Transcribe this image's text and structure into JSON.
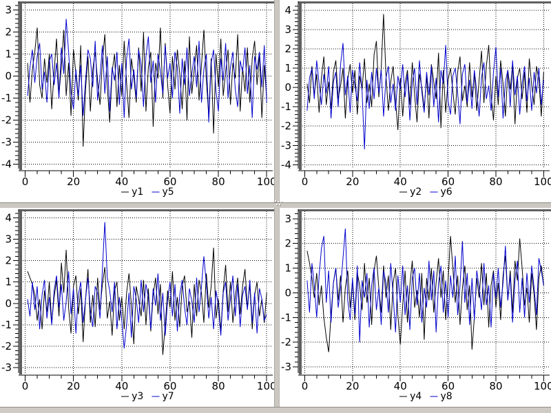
{
  "window": {
    "background": "#cbc7c1",
    "plot_frame_color": "#5f5f5f",
    "axis_color": "#000000",
    "grid_color": "#000000",
    "series_black": "#000000",
    "series_blue": "#0000cc"
  },
  "chart_data": [
    {
      "type": "line",
      "title": "",
      "xlabel": "",
      "ylabel": "",
      "grid": true,
      "legend_position": "bottom",
      "x_ticks": [
        0,
        20,
        40,
        60,
        80,
        100
      ],
      "x_tick_labels": [
        "0",
        "20",
        "40",
        "60",
        "80",
        "100"
      ],
      "y_ticks": [
        3,
        2,
        1,
        0,
        -1,
        -2,
        -3,
        -4
      ],
      "y_tick_labels": [
        "3",
        "2",
        "1",
        "0",
        "-1",
        "-2",
        "-3",
        "-4"
      ],
      "x_minor_step": 5,
      "y_minor_step": 0.2,
      "xlim": [
        -1,
        102.5
      ],
      "ylim": [
        -4.2,
        3.3
      ],
      "x_start": 1,
      "x_step": 1,
      "series": [
        {
          "name": "y1",
          "color": "#000000",
          "values": [
            0.6,
            -1.2,
            0.3,
            1.1,
            2.2,
            -0.4,
            -1.0,
            0.8,
            -0.3,
            1.0,
            -1.5,
            0.2,
            1.7,
            -0.8,
            0.4,
            2.1,
            -0.9,
            0.6,
            -1.8,
            1.2,
            0.1,
            -1.1,
            1.4,
            -3.2,
            -0.6,
            0.9,
            -1.6,
            0.3,
            1.1,
            -0.2,
            -1.3,
            0.7,
            1.9,
            -0.5,
            -2.1,
            0.2,
            1.0,
            -1.4,
            0.5,
            -0.9,
            1.6,
            -0.3,
            -1.9,
            0.8,
            0.0,
            -1.2,
            1.3,
            -0.7,
            2.0,
            -1.6,
            0.4,
            1.1,
            -2.3,
            0.6,
            -0.1,
            2.2,
            -1.0,
            1.5,
            -0.4,
            -1.7,
            0.9,
            -0.6,
            1.2,
            0.1,
            -1.5,
            0.7,
            -2.0,
            1.8,
            -0.8,
            0.3,
            1.4,
            -1.1,
            0.5,
            2.1,
            -0.2,
            -1.8,
            0.8,
            -2.6,
            1.0,
            -0.5,
            1.7,
            -0.9,
            0.2,
            1.2,
            -1.3,
            0.6,
            -0.1,
            1.9,
            -1.6,
            0.4,
            -0.7,
            1.3,
            -1.2,
            0.8,
            1.6,
            -0.4,
            1.0,
            -1.9,
            0.5,
            -1.0
          ]
        },
        {
          "name": "y5",
          "color": "#0000cc",
          "values": [
            -0.9,
            0.4,
            1.2,
            -0.3,
            0.9,
            1.5,
            -0.6,
            0.2,
            -1.2,
            0.7,
            1.0,
            -0.4,
            0.6,
            -1.0,
            1.3,
            0.1,
            2.6,
            1.1,
            -0.7,
            -1.5,
            0.3,
            -0.9,
            0.5,
            -1.8,
            -0.2,
            1.2,
            0.8,
            -0.5,
            1.6,
            -1.1,
            0.0,
            1.4,
            -0.8,
            0.9,
            -1.6,
            0.4,
            -0.2,
            1.1,
            -1.3,
            0.6,
            -1.9,
            0.8,
            1.7,
            -0.6,
            0.3,
            -1.0,
            1.2,
            0.5,
            -1.4,
            0.9,
            1.8,
            -0.3,
            0.7,
            -1.2,
            1.0,
            0.2,
            -0.8,
            1.4,
            -0.1,
            0.6,
            -1.0,
            1.1,
            0.4,
            -1.7,
            0.8,
            -0.4,
            1.3,
            -0.9,
            0.1,
            0.9,
            -0.5,
            1.6,
            -1.2,
            0.3,
            1.0,
            -2.1,
            0.6,
            1.2,
            -0.7,
            -1.6,
            0.8,
            -0.2,
            1.5,
            -1.0,
            0.4,
            1.1,
            -0.6,
            -1.4,
            0.7,
            0.2,
            1.3,
            -0.8,
            0.5,
            -1.9,
            0.9,
            0.3,
            1.1,
            -0.5,
            1.4,
            -1.2
          ]
        }
      ]
    },
    {
      "type": "line",
      "title": "",
      "xlabel": "",
      "ylabel": "",
      "grid": true,
      "legend_position": "bottom",
      "x_ticks": [
        0,
        20,
        40,
        60,
        80,
        100
      ],
      "x_tick_labels": [
        "0",
        "20",
        "40",
        "60",
        "80",
        "100"
      ],
      "y_ticks": [
        4,
        3,
        2,
        1,
        0,
        -1,
        -2,
        -3,
        -4
      ],
      "y_tick_labels": [
        "4",
        "3",
        "2",
        "1",
        "0",
        "-1",
        "-2",
        "-3",
        "-4"
      ],
      "x_minor_step": 5,
      "y_minor_step": 0.2,
      "xlim": [
        -1,
        102.5
      ],
      "ylim": [
        -4.2,
        4.35
      ],
      "x_start": 1,
      "x_step": 1,
      "series": [
        {
          "name": "y2",
          "color": "#000000",
          "values": [
            0.2,
            -0.8,
            1.1,
            -0.4,
            0.7,
            -1.3,
            0.5,
            1.6,
            -0.9,
            0.3,
            -1.1,
            0.8,
            1.4,
            -0.6,
            0.1,
            1.0,
            -1.6,
            0.4,
            1.2,
            -0.3,
            0.9,
            -1.4,
            0.6,
            -0.1,
            1.5,
            -0.8,
            0.2,
            -1.0,
            1.7,
            2.4,
            -0.5,
            1.0,
            3.8,
            0.6,
            -1.2,
            0.3,
            1.1,
            -0.7,
            -2.2,
            0.5,
            -1.5,
            0.2,
            0.9,
            -0.9,
            1.3,
            -0.4,
            -1.8,
            0.7,
            0.0,
            -1.1,
            0.6,
            -1.6,
            1.2,
            0.3,
            -0.6,
            1.8,
            -2.1,
            0.9,
            -1.3,
            0.4,
            1.0,
            -0.2,
            -1.4,
            0.8,
            1.6,
            -0.7,
            0.1,
            -1.0,
            1.3,
            -0.5,
            0.7,
            -1.2,
            0.4,
            1.9,
            -0.8,
            1.1,
            2.2,
            -0.4,
            -1.7,
            0.6,
            -0.9,
            1.4,
            0.2,
            -1.5,
            0.9,
            -0.1,
            1.2,
            -1.9,
            0.5,
            1.0,
            -0.6,
            0.8,
            -1.3,
            1.5,
            0.1,
            -0.9,
            1.1,
            0.4,
            -1.5,
            0.8
          ]
        },
        {
          "name": "y6",
          "color": "#0000cc",
          "values": [
            -1.2,
            0.5,
            1.0,
            -0.6,
            1.4,
            0.2,
            -0.9,
            0.7,
            -0.3,
            1.1,
            -1.6,
            0.3,
            0.8,
            -1.0,
            1.2,
            2.3,
            -0.4,
            0.6,
            -1.3,
            0.9,
            0.1,
            -0.7,
            1.3,
            -0.2,
            -3.2,
            0.4,
            -1.1,
            0.8,
            -0.6,
            1.0,
            -0.3,
            0.9,
            -1.5,
            0.5,
            1.1,
            -0.8,
            0.2,
            -1.2,
            0.6,
            -0.1,
            1.2,
            -0.5,
            0.7,
            -1.7,
            0.3,
            1.0,
            -0.9,
            1.4,
            -0.2,
            -1.3,
            0.8,
            -0.4,
            1.1,
            -1.0,
            0.5,
            -1.8,
            0.9,
            0.2,
            2.2,
            -0.7,
            -1.4,
            0.6,
            1.0,
            -0.3,
            -1.9,
            0.7,
            1.2,
            -0.8,
            0.4,
            -1.1,
            0.9,
            -0.2,
            -1.5,
            0.5,
            1.3,
            -0.6,
            0.1,
            -1.2,
            0.8,
            2.1,
            -0.5,
            1.0,
            -1.6,
            0.3,
            0.9,
            -1.0,
            1.4,
            -0.4,
            0.6,
            -1.4,
            0.2,
            1.1,
            -0.7,
            0.5,
            -1.2,
            0.8,
            -0.3,
            1.0,
            -0.9,
            0.4
          ]
        }
      ]
    },
    {
      "type": "line",
      "title": "",
      "xlabel": "",
      "ylabel": "",
      "grid": true,
      "legend_position": "bottom",
      "x_ticks": [
        0,
        20,
        40,
        60,
        80,
        100
      ],
      "x_tick_labels": [
        "0",
        "20",
        "40",
        "60",
        "80",
        "100"
      ],
      "y_ticks": [
        4,
        3,
        2,
        1,
        0,
        -1,
        -2,
        -3
      ],
      "y_tick_labels": [
        "4",
        "3",
        "2",
        "1",
        "0",
        "-1",
        "-2",
        "-3"
      ],
      "x_minor_step": 5,
      "y_minor_step": 0.2,
      "xlim": [
        -1,
        102.5
      ],
      "ylim": [
        -3.25,
        4.3
      ],
      "x_start": 1,
      "x_step": 1,
      "series": [
        {
          "name": "y3",
          "color": "#000000",
          "values": [
            1.5,
            1.2,
            0.9,
            0.4,
            -0.8,
            0.2,
            -1.2,
            0.6,
            -0.4,
            1.0,
            -0.9,
            0.3,
            1.1,
            -0.6,
            1.9,
            0.5,
            2.5,
            -0.2,
            -1.4,
            0.8,
            1.3,
            -0.5,
            0.7,
            -1.8,
            0.2,
            1.6,
            -0.9,
            0.4,
            -1.1,
            1.2,
            -0.3,
            0.9,
            1.7,
            -0.7,
            0.1,
            -1.5,
            0.6,
            1.0,
            -0.8,
            0.3,
            -1.2,
            0.5,
            1.4,
            -0.1,
            -1.9,
            0.8,
            0.2,
            -0.6,
            1.1,
            -1.0,
            0.7,
            -1.3,
            0.4,
            1.2,
            -0.5,
            0.9,
            -2.4,
            -1.0,
            0.6,
            -0.2,
            1.5,
            -0.8,
            0.3,
            -1.1,
            0.8,
            1.3,
            -0.4,
            0.1,
            -1.6,
            0.9,
            -0.6,
            1.1,
            0.5,
            -0.9,
            1.4,
            -0.2,
            0.8,
            2.6,
            -0.7,
            0.2,
            -1.3,
            0.6,
            1.8,
            -0.4,
            1.0,
            -0.9,
            0.3,
            1.2,
            -0.5,
            0.8,
            1.6,
            -0.2,
            0.9,
            -1.2,
            0.4,
            1.0,
            -0.6,
            0.2,
            -0.9,
            0.5
          ]
        },
        {
          "name": "y7",
          "color": "#0000cc",
          "values": [
            0.2,
            -0.6,
            1.0,
            -0.3,
            0.8,
            -1.2,
            0.4,
            1.1,
            -0.7,
            0.3,
            -1.0,
            0.6,
            1.3,
            -0.2,
            0.9,
            -0.8,
            0.1,
            1.5,
            -0.5,
            0.7,
            -1.4,
            0.4,
            1.0,
            -0.9,
            0.2,
            1.2,
            -0.3,
            -1.1,
            0.8,
            0.5,
            -0.7,
            1.6,
            3.8,
            1.2,
            0.6,
            -0.4,
            1.0,
            -1.2,
            0.3,
            -0.8,
            -2.1,
            -1.0,
            0.5,
            -1.6,
            0.8,
            0.2,
            -0.9,
            1.1,
            -0.4,
            0.9,
            0.3,
            -1.2,
            0.7,
            -0.1,
            1.4,
            -0.8,
            0.5,
            -1.5,
            0.2,
            1.0,
            -0.6,
            0.9,
            -1.3,
            0.4,
            1.1,
            -0.2,
            -1.0,
            0.7,
            0.1,
            -0.9,
            1.2,
            -0.4,
            0.8,
            2.2,
            0.9,
            -0.7,
            0.3,
            -1.2,
            0.6,
            -0.1,
            -1.5,
            0.5,
            1.0,
            -0.8,
            0.2,
            1.3,
            -0.6,
            0.9,
            -1.1,
            0.4,
            0.8,
            -0.3,
            1.1,
            -0.9,
            0.5,
            -1.4,
            0.7,
            0.2,
            -0.8,
            -0.5
          ]
        }
      ]
    },
    {
      "type": "line",
      "title": "",
      "xlabel": "",
      "ylabel": "",
      "grid": true,
      "legend_position": "bottom",
      "x_ticks": [
        0,
        20,
        40,
        60,
        80,
        100
      ],
      "x_tick_labels": [
        "0",
        "20",
        "40",
        "60",
        "80",
        "100"
      ],
      "y_ticks": [
        3,
        2,
        1,
        0,
        -1,
        -2,
        -3
      ],
      "y_tick_labels": [
        "3",
        "2",
        "1",
        "0",
        "-1",
        "-2",
        "-3"
      ],
      "x_minor_step": 5,
      "y_minor_step": 0.2,
      "xlim": [
        -1,
        102.5
      ],
      "ylim": [
        -3.25,
        3.3
      ],
      "x_start": 1,
      "x_step": 1,
      "series": [
        {
          "name": "y4",
          "color": "#000000",
          "values": [
            1.7,
            1.2,
            0.6,
            -0.2,
            0.8,
            -0.5,
            0.3,
            -1.0,
            -1.8,
            -2.4,
            -0.9,
            0.4,
            1.0,
            -0.3,
            0.7,
            -1.2,
            0.2,
            0.9,
            -0.6,
            0.5,
            -1.1,
            0.8,
            0.3,
            -0.7,
            1.2,
            -0.4,
            0.6,
            -1.3,
            0.9,
            1.5,
            0.2,
            -0.8,
            1.1,
            -0.2,
            0.7,
            -1.5,
            0.4,
            1.0,
            -0.9,
            -2.1,
            -0.5,
            0.9,
            -1.2,
            0.3,
            1.3,
            -0.6,
            0.1,
            -1.0,
            0.8,
            -1.9,
            0.6,
            -0.3,
            1.0,
            -0.8,
            0.4,
            1.4,
            -0.2,
            0.9,
            -1.1,
            0.5,
            2.3,
            1.0,
            -0.4,
            0.7,
            -1.3,
            0.2,
            1.1,
            -0.7,
            0.3,
            -2.3,
            -1.0,
            0.6,
            -0.2,
            1.2,
            -0.5,
            0.8,
            -1.4,
            0.3,
            0.9,
            -0.6,
            0.4,
            -1.1,
            0.7,
            1.5,
            -0.3,
            0.9,
            -0.8,
            1.3,
            0.5,
            2.2,
            1.0,
            -0.5,
            0.2,
            -1.2,
            0.8,
            -0.1,
            -1.5,
            0.6,
            1.1,
            0.3
          ]
        },
        {
          "name": "y8",
          "color": "#0000cc",
          "values": [
            0.5,
            -0.8,
            1.2,
            0.3,
            -1.0,
            0.7,
            1.8,
            2.3,
            -0.4,
            0.9,
            -1.2,
            0.4,
            1.0,
            -0.6,
            0.2,
            1.4,
            2.6,
            -0.3,
            -1.1,
            0.6,
            -0.9,
            1.1,
            -2.0,
            0.5,
            -0.2,
            0.8,
            -1.4,
            0.3,
            1.0,
            -0.7,
            0.2,
            -1.3,
            0.9,
            0.4,
            -0.8,
            1.2,
            -0.1,
            -1.6,
            0.7,
            -0.4,
            1.1,
            -0.9,
            0.3,
            -1.5,
            0.6,
            1.0,
            -0.5,
            0.8,
            -1.2,
            0.2,
            -0.6,
            1.3,
            -0.3,
            0.9,
            -1.6,
            0.4,
            1.1,
            -0.8,
            0.5,
            -1.0,
            0.7,
            -0.2,
            1.5,
            -0.9,
            0.3,
            2.1,
            -0.4,
            0.8,
            -1.3,
            0.6,
            -1.1,
            0.9,
            0.2,
            -0.7,
            1.2,
            -0.5,
            0.3,
            -1.4,
            0.8,
            -0.2,
            1.0,
            -0.6,
            0.4,
            1.9,
            -0.3,
            0.7,
            -1.2,
            0.5,
            1.3,
            -0.8,
            0.6,
            -1.0,
            0.8,
            -0.4,
            1.1,
            0.2,
            -0.9,
            1.4,
            0.9,
            0.3
          ]
        }
      ]
    }
  ]
}
